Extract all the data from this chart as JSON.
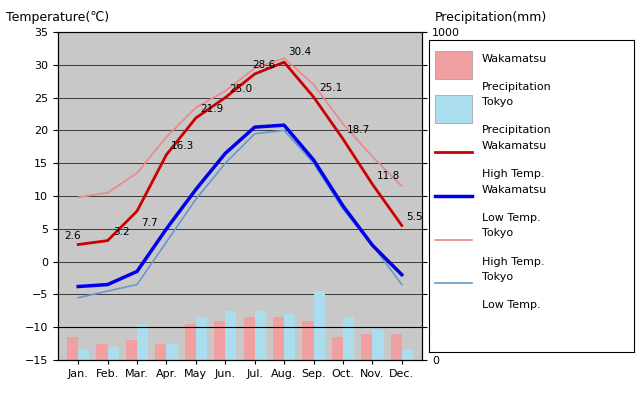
{
  "months": [
    "Jan.",
    "Feb.",
    "Mar.",
    "Apr.",
    "May",
    "Jun.",
    "Jul.",
    "Aug.",
    "Sep.",
    "Oct.",
    "Nov.",
    "Dec."
  ],
  "month_indices": [
    1,
    2,
    3,
    4,
    5,
    6,
    7,
    8,
    9,
    10,
    11,
    12
  ],
  "wakamatsu_high": [
    2.6,
    3.2,
    7.7,
    16.3,
    21.9,
    25.0,
    28.6,
    30.4,
    25.1,
    18.7,
    11.8,
    5.5
  ],
  "wakamatsu_low": [
    -3.8,
    -3.5,
    -1.5,
    5.0,
    11.0,
    16.5,
    20.5,
    20.8,
    15.5,
    8.5,
    2.5,
    -2.0
  ],
  "tokyo_high": [
    9.8,
    10.5,
    13.5,
    19.0,
    23.5,
    26.0,
    29.5,
    31.0,
    27.0,
    21.0,
    16.0,
    11.5
  ],
  "tokyo_low": [
    -5.5,
    -4.5,
    -3.5,
    3.0,
    9.5,
    15.0,
    19.5,
    20.0,
    15.0,
    8.0,
    2.5,
    -3.5
  ],
  "wakamatsu_precip_bar": [
    3.5,
    2.5,
    3.0,
    2.5,
    5.5,
    6.0,
    6.5,
    6.5,
    6.0,
    3.5,
    4.0,
    4.0
  ],
  "tokyo_precip_bar": [
    1.5,
    2.0,
    5.5,
    2.5,
    6.5,
    7.5,
    7.5,
    7.0,
    10.5,
    6.5,
    4.5,
    1.5
  ],
  "bar_bottom": -15,
  "temp_ylim": [
    -15,
    35
  ],
  "precip_ylim": [
    0,
    1000
  ],
  "background_color": "#c8c8c8",
  "wakamatsu_high_color": "#cc0000",
  "wakamatsu_low_color": "#0000ee",
  "tokyo_high_color": "#ee8888",
  "tokyo_low_color": "#6699cc",
  "wakamatsu_precip_color": "#f0a0a0",
  "tokyo_precip_color": "#aaddee",
  "title_left": "Temperature(℃)",
  "title_right": "Precipitation(mm)",
  "legend_labels": [
    "Wakamatsu\nPrecipitation",
    "Tokyo\nPrecipitation",
    "Wakamatsu\nHigh Temp.",
    "Wakamatsu\nLow Temp.",
    "Tokyo\nHigh Temp.",
    "Tokyo\nLow Temp."
  ]
}
